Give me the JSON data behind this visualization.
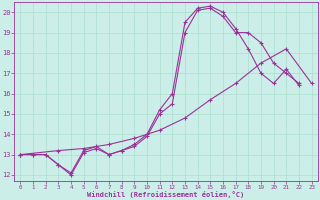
{
  "xlabel": "Windchill (Refroidissement éolien,°C)",
  "xlim": [
    -0.5,
    23.5
  ],
  "ylim": [
    11.7,
    20.5
  ],
  "xticks": [
    0,
    1,
    2,
    3,
    4,
    5,
    6,
    7,
    8,
    9,
    10,
    11,
    12,
    13,
    14,
    15,
    16,
    17,
    18,
    19,
    20,
    21,
    22,
    23
  ],
  "yticks": [
    12,
    13,
    14,
    15,
    16,
    17,
    18,
    19,
    20
  ],
  "bg_color": "#cceee8",
  "line_color": "#993399",
  "grid_color": "#aaddcc",
  "curve1_x": [
    0,
    1,
    2,
    3,
    4,
    5,
    6,
    7,
    8,
    9,
    10,
    11,
    12,
    13,
    14,
    15,
    16,
    17,
    18,
    19,
    20,
    21,
    22
  ],
  "curve1_y": [
    13.0,
    13.0,
    13.0,
    12.5,
    12.0,
    13.1,
    13.3,
    13.0,
    13.2,
    13.4,
    13.9,
    15.0,
    15.5,
    19.0,
    20.1,
    20.2,
    19.8,
    19.0,
    19.0,
    18.5,
    17.5,
    17.0,
    16.5
  ],
  "curve2_x": [
    0,
    1,
    2,
    3,
    4,
    5,
    6,
    7,
    8,
    9,
    10,
    11,
    12,
    13,
    14,
    15,
    16,
    17,
    18,
    19,
    20,
    21,
    22
  ],
  "curve2_y": [
    13.0,
    13.0,
    13.0,
    12.5,
    12.1,
    13.2,
    13.4,
    13.0,
    13.2,
    13.5,
    14.0,
    15.2,
    16.0,
    19.5,
    20.2,
    20.3,
    20.0,
    19.2,
    18.2,
    17.0,
    16.5,
    17.2,
    16.4
  ],
  "curve3_x": [
    0,
    3,
    5,
    7,
    9,
    11,
    13,
    15,
    17,
    19,
    21,
    23
  ],
  "curve3_y": [
    13.0,
    13.2,
    13.3,
    13.5,
    13.8,
    14.2,
    14.8,
    15.7,
    16.5,
    17.5,
    18.2,
    16.5
  ]
}
